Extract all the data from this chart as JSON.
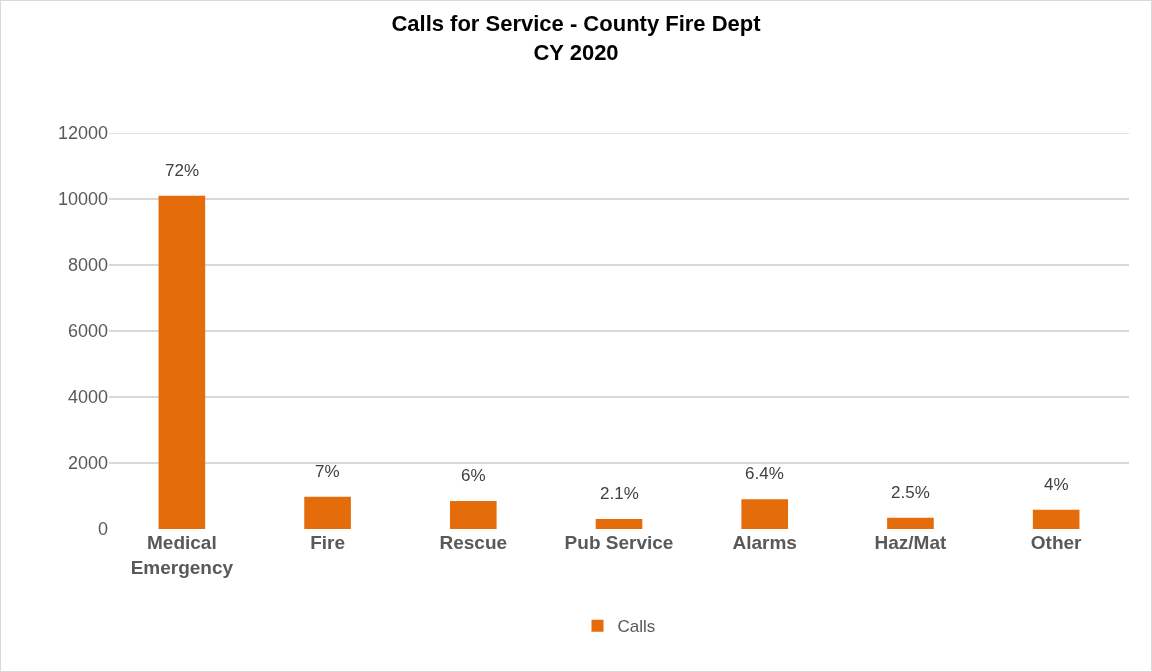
{
  "chart_data": {
    "type": "bar",
    "title": "Calls for Service - County Fire Dept\nCY 2020",
    "categories": [
      "Medical\nEmergency",
      "Fire",
      "Rescue",
      "Pub Service",
      "Alarms",
      "Haz/Mat",
      "Other"
    ],
    "series": [
      {
        "name": "Calls",
        "color": "#e46c0a",
        "values": [
          10100,
          980,
          850,
          300,
          900,
          340,
          580
        ]
      }
    ],
    "annotations": [
      {
        "text": "72%",
        "x": "Medical\nEmergency",
        "y": 10100
      },
      {
        "text": "7%",
        "x": "Fire",
        "y": 980
      },
      {
        "text": "6%",
        "x": "Rescue",
        "y": 850
      },
      {
        "text": "2.1%",
        "x": "Pub Service",
        "y": 300
      },
      {
        "text": "6.4%",
        "x": "Alarms",
        "y": 900
      },
      {
        "text": "2.5%",
        "x": "Haz/Mat",
        "y": 340
      },
      {
        "text": "4%",
        "x": "Other",
        "y": 580
      }
    ],
    "ylim": [
      0,
      12000
    ],
    "yticks": [
      0,
      2000,
      4000,
      6000,
      8000,
      10000,
      12000
    ],
    "grid": "y",
    "legend": "bottom"
  }
}
